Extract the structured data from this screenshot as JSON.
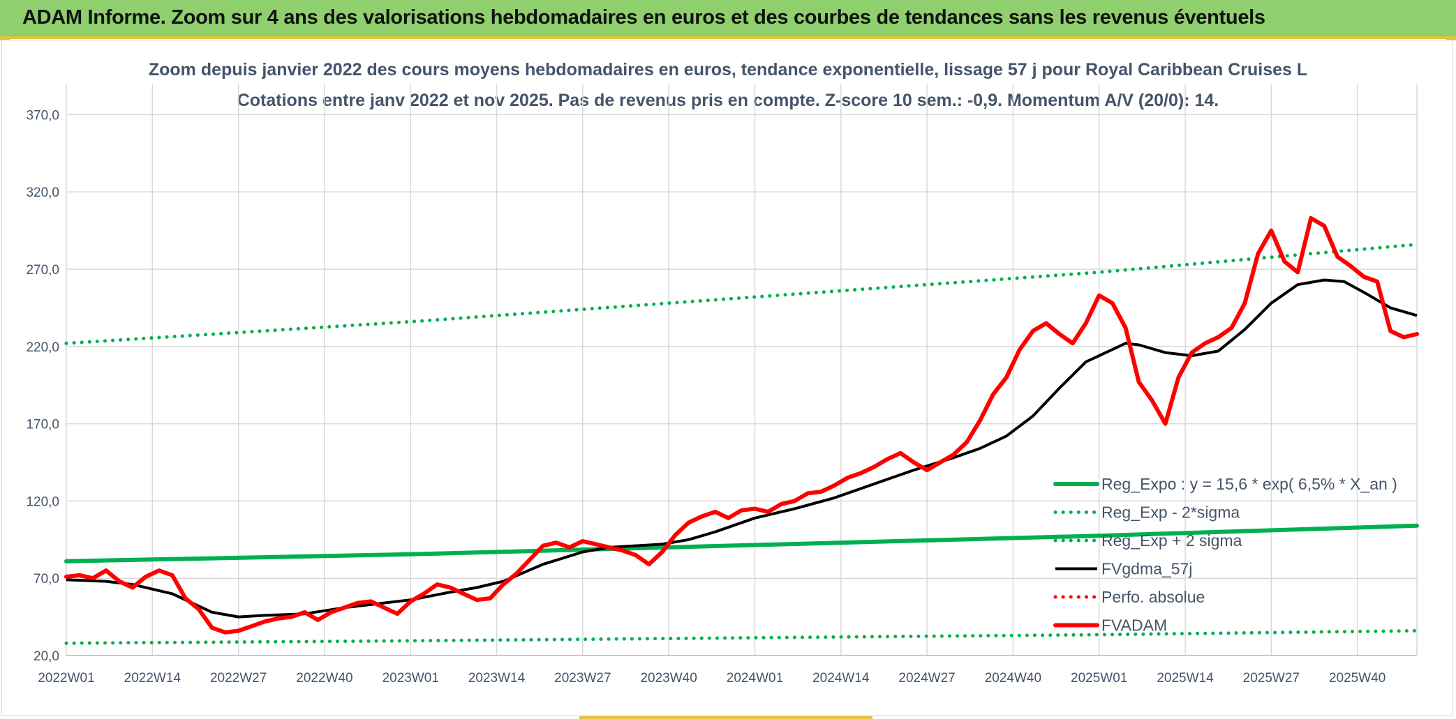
{
  "header": {
    "title": "ADAM Informe. Zoom sur 4 ans des valorisations hebdomadaires en euros et des courbes de tendances sans les revenus éventuels"
  },
  "chart_data": {
    "type": "line",
    "title_line1": "Zoom depuis janvier 2022 des cours moyens hebdomadaires en euros, tendance exponentielle, lissage 57 j pour Royal Caribbean Cruises L",
    "title_line2": "Cotations entre janv 2022 et nov 2025. Pas de revenus pris en compte. Z-score 10 sem.: -0,9. Momentum A/V (20/0): 14.",
    "ylim": [
      20,
      390
    ],
    "ytick_values": [
      20,
      70,
      120,
      170,
      220,
      270,
      320,
      370
    ],
    "ytick_labels": [
      "20,0",
      "70,0",
      "120,0",
      "170,0",
      "220,0",
      "270,0",
      "320,0",
      "370,0"
    ],
    "xlim": [
      0,
      204
    ],
    "xtick_positions": [
      0,
      13,
      26,
      39,
      52,
      65,
      78,
      91,
      104,
      117,
      130,
      143,
      156,
      169,
      182,
      195
    ],
    "xtick_labels": [
      "2022W01",
      "2022W14",
      "2022W27",
      "2022W40",
      "2023W01",
      "2023W14",
      "2023W27",
      "2023W40",
      "2024W01",
      "2024W14",
      "2024W27",
      "2024W40",
      "2025W01",
      "2025W14",
      "2025W27",
      "2025W40"
    ],
    "grid": true,
    "series": [
      {
        "name": "Reg_Expo : y = 15,6 * exp( 6,5% *  X_an )",
        "style": "solid-thick",
        "color": "#00b050",
        "x": [
          0,
          52,
          104,
          156,
          204
        ],
        "values": [
          81,
          85.5,
          91.5,
          97.5,
          104
        ]
      },
      {
        "name": "Reg_Exp - 2*sigma",
        "style": "dotted",
        "color": "#00b050",
        "x": [
          0,
          52,
          104,
          156,
          204
        ],
        "values": [
          28,
          29.5,
          31.5,
          33.5,
          36
        ]
      },
      {
        "name": "Reg_Exp + 2 sigma",
        "style": "dotted",
        "color": "#00b050",
        "x": [
          0,
          52,
          104,
          156,
          204
        ],
        "values": [
          222,
          236,
          252,
          268,
          286
        ]
      },
      {
        "name": "FVgdma_57j",
        "style": "solid",
        "color": "#000000",
        "x": [
          0,
          6,
          10,
          16,
          22,
          26,
          30,
          36,
          42,
          48,
          52,
          58,
          62,
          66,
          72,
          78,
          82,
          86,
          90,
          94,
          98,
          104,
          110,
          116,
          122,
          128,
          134,
          138,
          142,
          146,
          150,
          154,
          158,
          160,
          162,
          166,
          170,
          174,
          178,
          182,
          186,
          190,
          193,
          196,
          200,
          204
        ],
        "values": [
          69,
          68,
          66,
          60,
          48,
          45,
          46,
          47,
          51,
          54,
          56,
          61,
          64,
          68,
          79,
          87,
          90,
          91,
          92,
          95,
          100,
          109,
          115,
          122,
          131,
          140,
          148,
          154,
          162,
          175,
          193,
          210,
          218,
          222,
          221,
          216,
          214,
          217,
          231,
          248,
          260,
          263,
          262,
          255,
          245,
          240
        ]
      },
      {
        "name": "Perfo. absolue",
        "style": "dotted",
        "color": "#ff0000",
        "x": [],
        "values": []
      },
      {
        "name": "FVADAM",
        "style": "solid-thick",
        "color": "#ff0000",
        "x": [
          0,
          2,
          4,
          6,
          8,
          10,
          12,
          14,
          16,
          18,
          20,
          22,
          24,
          26,
          28,
          30,
          32,
          34,
          36,
          38,
          40,
          42,
          44,
          46,
          48,
          50,
          52,
          54,
          56,
          58,
          60,
          62,
          64,
          66,
          68,
          70,
          72,
          74,
          76,
          78,
          80,
          82,
          84,
          86,
          88,
          90,
          92,
          94,
          96,
          98,
          100,
          102,
          104,
          106,
          108,
          110,
          112,
          114,
          116,
          118,
          120,
          122,
          124,
          126,
          128,
          130,
          132,
          134,
          136,
          138,
          140,
          142,
          144,
          146,
          148,
          150,
          152,
          154,
          156,
          158,
          160,
          162,
          164,
          166,
          168,
          170,
          172,
          174,
          176,
          178,
          180,
          182,
          184,
          186,
          188,
          190,
          192,
          194,
          196,
          198,
          200,
          202,
          204
        ],
        "values": [
          71,
          72,
          70,
          75,
          68,
          64,
          71,
          75,
          72,
          57,
          50,
          38,
          35,
          36,
          39,
          42,
          44,
          45,
          48,
          43,
          48,
          51,
          54,
          55,
          51,
          47,
          55,
          60,
          66,
          64,
          60,
          56,
          57,
          66,
          73,
          82,
          91,
          93,
          90,
          94,
          92,
          90,
          88,
          85,
          79,
          87,
          98,
          106,
          110,
          113,
          109,
          114,
          115,
          113,
          118,
          120,
          125,
          126,
          130,
          135,
          138,
          142,
          147,
          151,
          145,
          140,
          145,
          150,
          158,
          172,
          189,
          200,
          218,
          230,
          235,
          228,
          222,
          235,
          253,
          248,
          232,
          197,
          185,
          170,
          200,
          216,
          222,
          226,
          232,
          248,
          280,
          295,
          275,
          268,
          303,
          298,
          278,
          272,
          265,
          262,
          230,
          226,
          228
        ]
      }
    ]
  }
}
